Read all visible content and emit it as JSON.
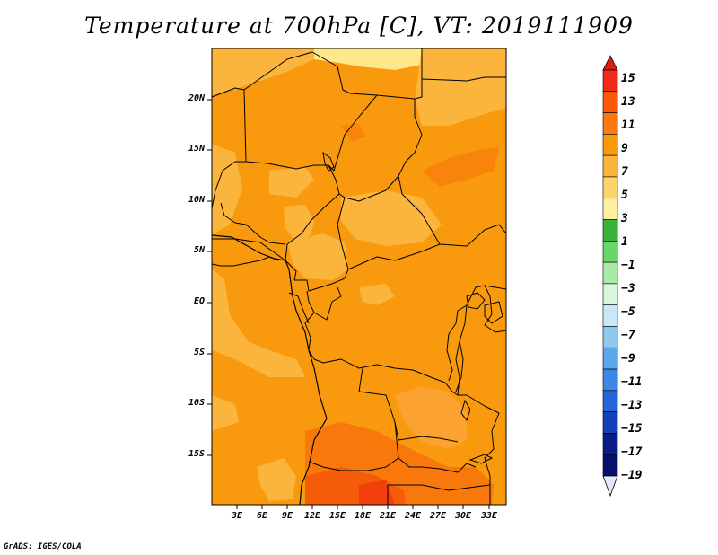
{
  "title": "Temperature at 700hPa [C], VT: 2019111909",
  "credit": "GrADS: IGES/COLA",
  "map": {
    "lat_labels": [
      "20N",
      "15N",
      "10N",
      "5N",
      "EQ",
      "5S",
      "10S",
      "15S"
    ],
    "lon_labels": [
      "3E",
      "6E",
      "9E",
      "12E",
      "15E",
      "18E",
      "21E",
      "24E",
      "27E",
      "30E",
      "33E"
    ]
  },
  "colorbar": {
    "labels": [
      "15",
      "13",
      "11",
      "9",
      "7",
      "5",
      "3",
      "1",
      "−1",
      "−3",
      "−5",
      "−7",
      "−9",
      "−11",
      "−13",
      "−15",
      "−17",
      "−19"
    ],
    "colors": [
      "#f02a16",
      "#f85a0a",
      "#fb7a10",
      "#f99a0e",
      "#fbb43c",
      "#fdd46a",
      "#fff0a0",
      "#36b43a",
      "#6ad66a",
      "#a8eaa8",
      "#d8f6dc",
      "#c8e8fa",
      "#90c8f0",
      "#5aa8ea",
      "#3c88e4",
      "#2464d8",
      "#1440b8",
      "#0a1e88",
      "#06106a"
    ],
    "top_arrow_color": "#dc1e10",
    "bottom_arrow_color": "#e6e6fa"
  }
}
